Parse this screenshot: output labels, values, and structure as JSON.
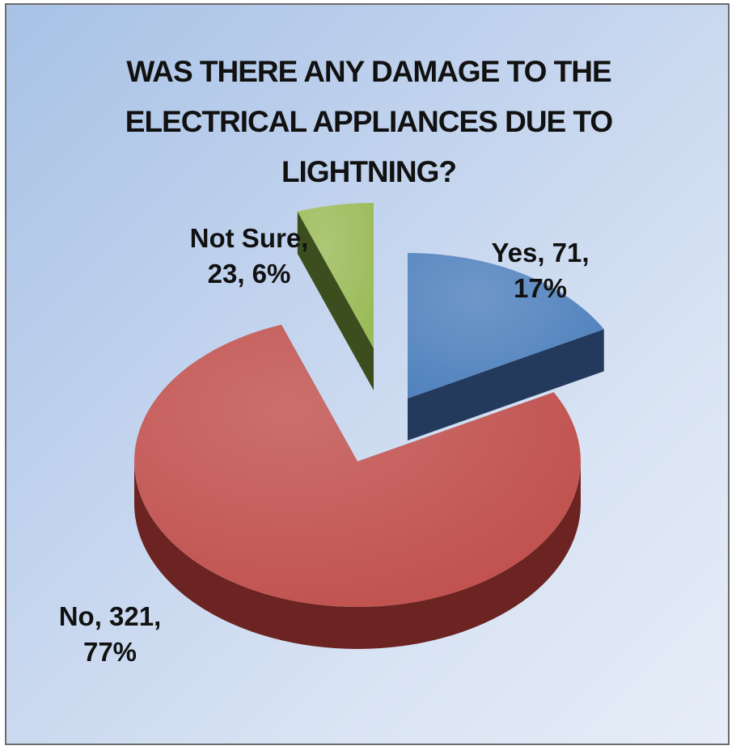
{
  "chart_data": {
    "type": "pie",
    "title_lines": [
      "WAS THERE ANY DAMAGE TO THE",
      "ELECTRICAL APPLIANCES DUE TO",
      "LIGHTNING?"
    ],
    "slices": [
      {
        "name": "Yes",
        "value": 71,
        "percent": "17%",
        "color": "#4f81bd",
        "side_color": "#243a5c",
        "label_lines": [
          "Yes, 71,",
          "17%"
        ]
      },
      {
        "name": "No",
        "value": 321,
        "percent": "77%",
        "color": "#c0504d",
        "side_color": "#6b2422",
        "label_lines": [
          "No, 321,",
          "77%"
        ]
      },
      {
        "name": "Not Sure",
        "value": 23,
        "percent": "6%",
        "color": "#9bbb59",
        "side_color": "#3d4e1e",
        "label_lines": [
          "Not Sure,",
          "23, 6%"
        ]
      }
    ],
    "legend": "none",
    "style": "3d-exploded"
  }
}
